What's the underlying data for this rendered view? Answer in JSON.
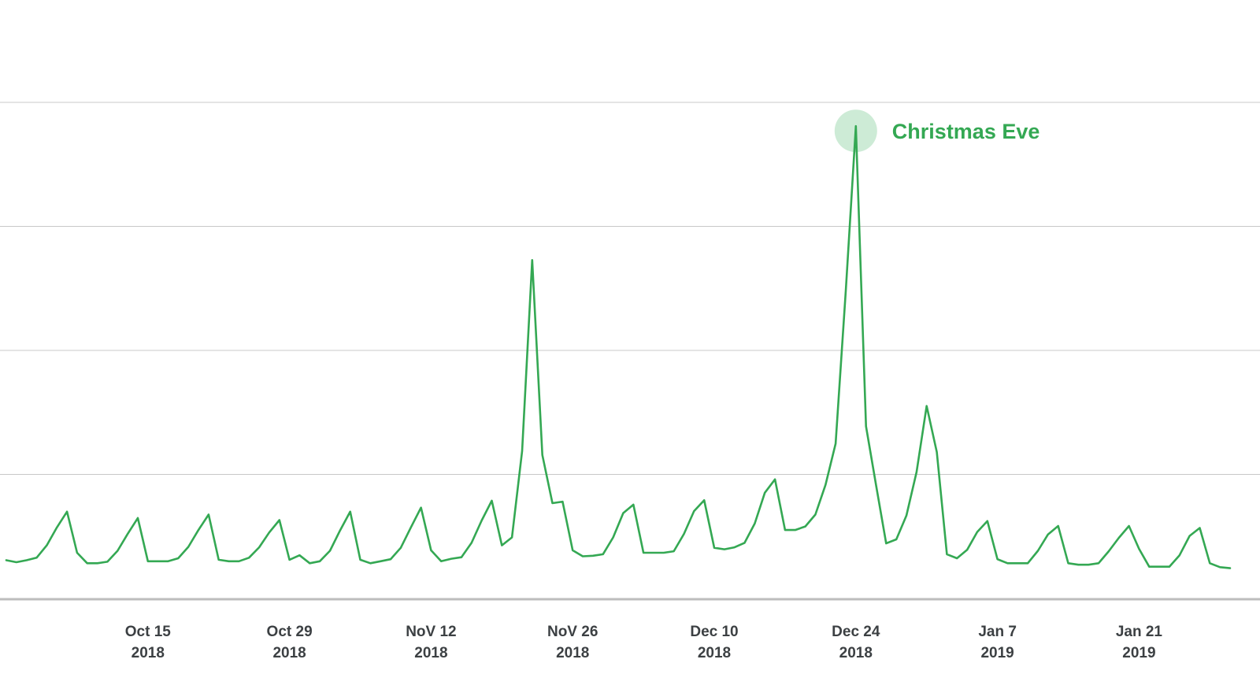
{
  "colors": {
    "series": "#34a853",
    "highlight": "#cdebd6",
    "grid": "#c8c8c8",
    "axis_text": "#3c4043"
  },
  "chart_data": {
    "type": "line",
    "title": "",
    "xlabel": "",
    "ylabel": "",
    "x_start": "2018-10-01",
    "x_end": "2019-01-30",
    "ylim": [
      0,
      100
    ],
    "grid": true,
    "y_gridlines": [
      0,
      25,
      50,
      75,
      100
    ],
    "x_ticks": [
      {
        "date": "2018-10-15",
        "line1": "Oct 15",
        "line2": "2018"
      },
      {
        "date": "2018-10-29",
        "line1": "Oct 29",
        "line2": "2018"
      },
      {
        "date": "2018-11-12",
        "line1": "NoV 12",
        "line2": "2018"
      },
      {
        "date": "2018-11-26",
        "line1": "NoV 26",
        "line2": "2018"
      },
      {
        "date": "2018-12-10",
        "line1": "Dec 10",
        "line2": "2018"
      },
      {
        "date": "2018-12-24",
        "line1": "Dec 24",
        "line2": "2018"
      },
      {
        "date": "2019-01-07",
        "line1": "Jan 7",
        "line2": "2019"
      },
      {
        "date": "2019-01-21",
        "line1": "Jan 21",
        "line2": "2019"
      }
    ],
    "series": [
      {
        "values": [
          [
            "2018-10-01",
            7.7
          ],
          [
            "2018-10-02",
            7.3
          ],
          [
            "2018-10-03",
            7.7
          ],
          [
            "2018-10-04",
            8.2
          ],
          [
            "2018-10-05",
            10.7
          ],
          [
            "2018-10-06",
            14.3
          ],
          [
            "2018-10-07",
            17.5
          ],
          [
            "2018-10-08",
            9.2
          ],
          [
            "2018-10-09",
            7.1
          ],
          [
            "2018-10-10",
            7.1
          ],
          [
            "2018-10-11",
            7.4
          ],
          [
            "2018-10-12",
            9.6
          ],
          [
            "2018-10-13",
            13.0
          ],
          [
            "2018-10-14",
            16.2
          ],
          [
            "2018-10-15",
            7.5
          ],
          [
            "2018-10-16",
            7.5
          ],
          [
            "2018-10-17",
            7.5
          ],
          [
            "2018-10-18",
            8.1
          ],
          [
            "2018-10-19",
            10.4
          ],
          [
            "2018-10-20",
            13.8
          ],
          [
            "2018-10-21",
            16.9
          ],
          [
            "2018-10-22",
            7.8
          ],
          [
            "2018-10-23",
            7.5
          ],
          [
            "2018-10-24",
            7.5
          ],
          [
            "2018-10-25",
            8.2
          ],
          [
            "2018-10-26",
            10.3
          ],
          [
            "2018-10-27",
            13.3
          ],
          [
            "2018-10-28",
            15.8
          ],
          [
            "2018-10-29",
            7.8
          ],
          [
            "2018-10-30",
            8.7
          ],
          [
            "2018-10-31",
            7.1
          ],
          [
            "2018-11-01",
            7.5
          ],
          [
            "2018-11-02",
            9.6
          ],
          [
            "2018-11-03",
            13.7
          ],
          [
            "2018-11-04",
            17.5
          ],
          [
            "2018-11-05",
            7.8
          ],
          [
            "2018-11-06",
            7.1
          ],
          [
            "2018-11-07",
            7.5
          ],
          [
            "2018-11-08",
            7.9
          ],
          [
            "2018-11-09",
            10.2
          ],
          [
            "2018-11-10",
            14.3
          ],
          [
            "2018-11-11",
            18.3
          ],
          [
            "2018-11-12",
            9.7
          ],
          [
            "2018-11-13",
            7.5
          ],
          [
            "2018-11-14",
            8.0
          ],
          [
            "2018-11-15",
            8.3
          ],
          [
            "2018-11-16",
            11.2
          ],
          [
            "2018-11-17",
            15.7
          ],
          [
            "2018-11-18",
            19.7
          ],
          [
            "2018-11-19",
            10.7
          ],
          [
            "2018-11-20",
            12.3
          ],
          [
            "2018-11-21",
            29.7
          ],
          [
            "2018-11-22",
            68.2
          ],
          [
            "2018-11-23",
            28.9
          ],
          [
            "2018-11-24",
            19.2
          ],
          [
            "2018-11-25",
            19.5
          ],
          [
            "2018-11-26",
            9.7
          ],
          [
            "2018-11-27",
            8.5
          ],
          [
            "2018-11-28",
            8.6
          ],
          [
            "2018-11-29",
            8.9
          ],
          [
            "2018-11-30",
            12.3
          ],
          [
            "2018-12-01",
            17.2
          ],
          [
            "2018-12-02",
            18.9
          ],
          [
            "2018-12-03",
            9.2
          ],
          [
            "2018-12-04",
            9.2
          ],
          [
            "2018-12-05",
            9.2
          ],
          [
            "2018-12-06",
            9.5
          ],
          [
            "2018-12-07",
            13.0
          ],
          [
            "2018-12-08",
            17.6
          ],
          [
            "2018-12-09",
            19.8
          ],
          [
            "2018-12-10",
            10.2
          ],
          [
            "2018-12-11",
            9.9
          ],
          [
            "2018-12-12",
            10.3
          ],
          [
            "2018-12-13",
            11.2
          ],
          [
            "2018-12-14",
            15.1
          ],
          [
            "2018-12-15",
            21.3
          ],
          [
            "2018-12-16",
            24.0
          ],
          [
            "2018-12-17",
            13.8
          ],
          [
            "2018-12-18",
            13.8
          ],
          [
            "2018-12-19",
            14.5
          ],
          [
            "2018-12-20",
            16.9
          ],
          [
            "2018-12-21",
            22.9
          ],
          [
            "2018-12-22",
            31.2
          ],
          [
            "2018-12-23",
            62.0
          ],
          [
            "2018-12-24",
            95.2
          ],
          [
            "2018-12-25",
            34.7
          ],
          [
            "2018-12-26",
            22.8
          ],
          [
            "2018-12-27",
            11.1
          ],
          [
            "2018-12-28",
            11.9
          ],
          [
            "2018-12-29",
            16.7
          ],
          [
            "2018-12-30",
            25.5
          ],
          [
            "2018-12-31",
            38.8
          ],
          [
            "2019-01-01",
            29.5
          ],
          [
            "2019-01-02",
            8.9
          ],
          [
            "2019-01-03",
            8.1
          ],
          [
            "2019-01-04",
            9.8
          ],
          [
            "2019-01-05",
            13.4
          ],
          [
            "2019-01-06",
            15.6
          ],
          [
            "2019-01-07",
            7.9
          ],
          [
            "2019-01-08",
            7.1
          ],
          [
            "2019-01-09",
            7.1
          ],
          [
            "2019-01-10",
            7.1
          ],
          [
            "2019-01-11",
            9.6
          ],
          [
            "2019-01-12",
            12.9
          ],
          [
            "2019-01-13",
            14.6
          ],
          [
            "2019-01-14",
            7.1
          ],
          [
            "2019-01-15",
            6.8
          ],
          [
            "2019-01-16",
            6.8
          ],
          [
            "2019-01-17",
            7.1
          ],
          [
            "2019-01-18",
            9.5
          ],
          [
            "2019-01-19",
            12.2
          ],
          [
            "2019-01-20",
            14.6
          ],
          [
            "2019-01-21",
            10.0
          ],
          [
            "2019-01-22",
            6.4
          ],
          [
            "2019-01-23",
            6.4
          ],
          [
            "2019-01-24",
            6.4
          ],
          [
            "2019-01-25",
            8.7
          ],
          [
            "2019-01-26",
            12.6
          ],
          [
            "2019-01-27",
            14.2
          ],
          [
            "2019-01-28",
            7.1
          ],
          [
            "2019-01-29",
            6.3
          ],
          [
            "2019-01-30",
            6.1
          ]
        ]
      }
    ],
    "annotations": [
      {
        "date": "2018-12-24",
        "value": 95.2,
        "label": "Christmas Eve"
      }
    ]
  }
}
